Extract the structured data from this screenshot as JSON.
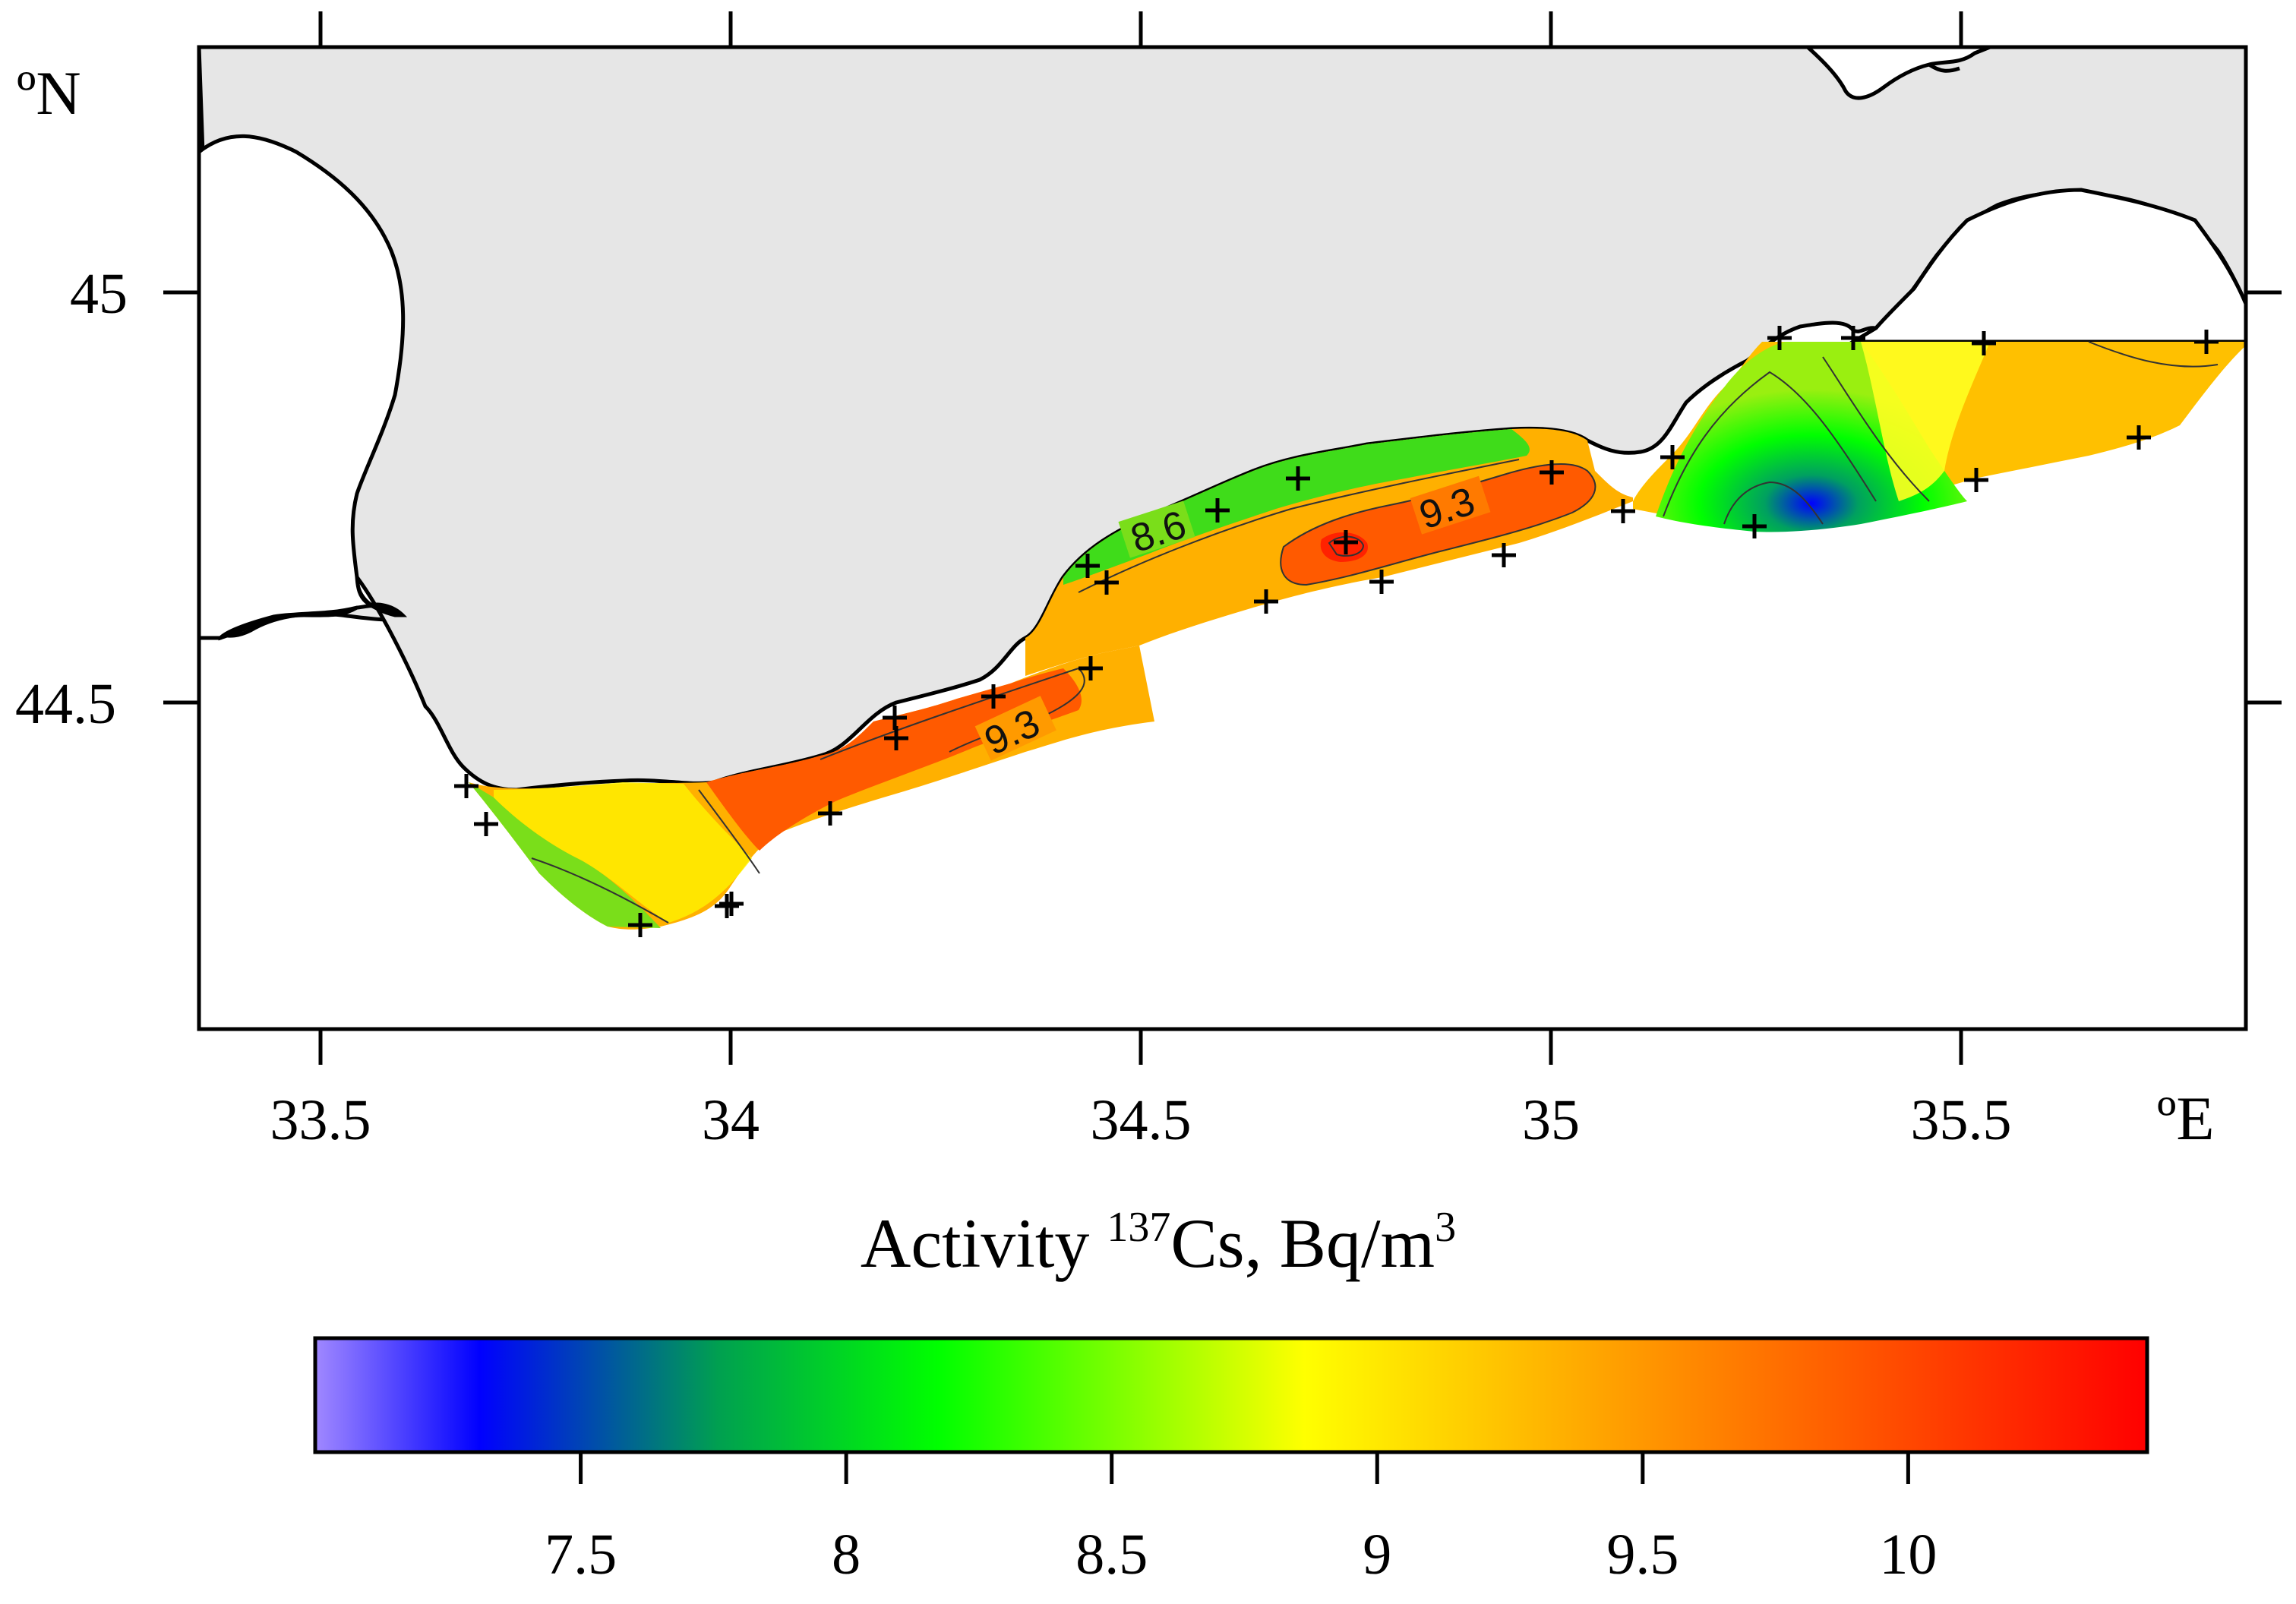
{
  "map": {
    "lat_unit": "ºN",
    "lon_unit": "ºE",
    "lat_ticks": [
      "45",
      "44.5"
    ],
    "lon_ticks": [
      "33.5",
      "34",
      "34.5",
      "35",
      "35.5"
    ],
    "contour_labels": [
      "8.6",
      "9.3",
      "9.3"
    ],
    "stations_count": 28,
    "land_color": "#e6e6e6",
    "sea_color": "#ffffff"
  },
  "colorbar": {
    "title_prefix": "Activity ",
    "title_sup": "137",
    "title_main": "Cs, Bq/m",
    "title_sup2": "3",
    "ticks": [
      "7.5",
      "8",
      "8.5",
      "9",
      "9.5",
      "10"
    ],
    "range": [
      7.0,
      10.45
    ],
    "colors": [
      "#9a7bff",
      "#0000ff",
      "#00a050",
      "#00ff00",
      "#ffff00",
      "#ffa500",
      "#ff0000"
    ]
  }
}
